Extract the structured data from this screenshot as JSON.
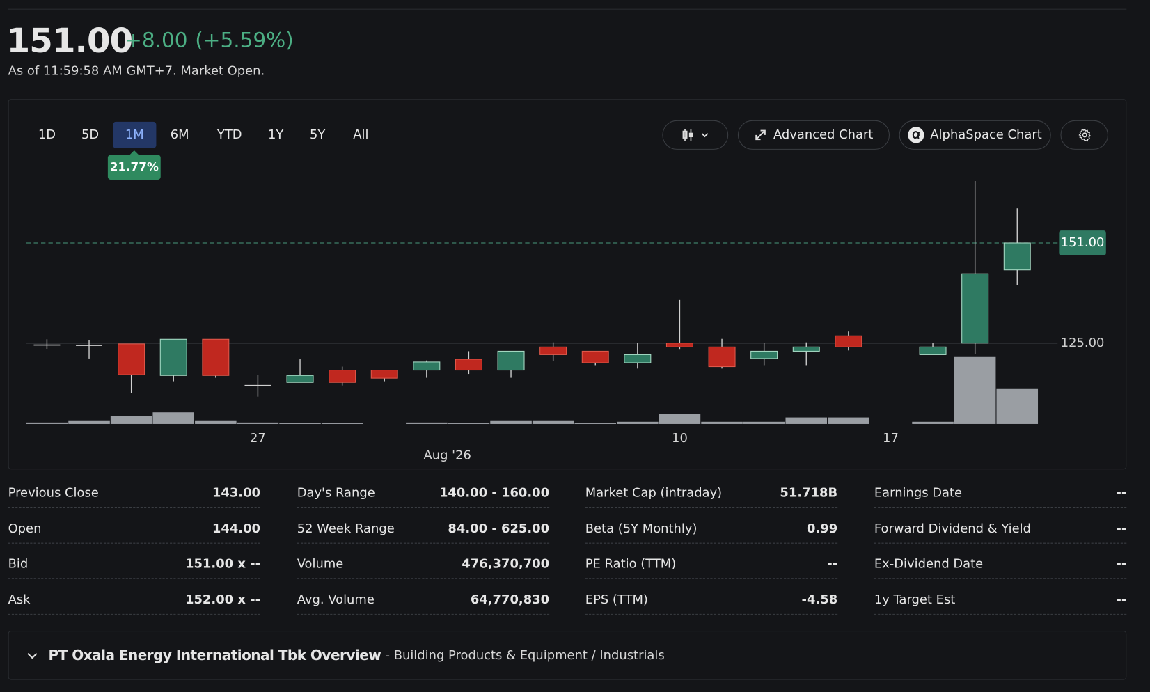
{
  "header": {
    "price": "151.00",
    "change": "+8.00",
    "change_percent": "(+5.59%)",
    "as_of": "As of 11:59:58 AM GMT+7. Market Open."
  },
  "toolbar": {
    "ranges": [
      "1D",
      "5D",
      "1M",
      "6M",
      "YTD",
      "1Y",
      "5Y",
      "All"
    ],
    "selected": "1M",
    "range_change": "21.77%",
    "buttons": [
      "Advanced Chart",
      "AlphaSpace Chart"
    ]
  },
  "chart_data": {
    "type": "candlestick",
    "categories": [
      null,
      null,
      null,
      null,
      null,
      "27",
      null,
      null,
      null,
      null,
      null,
      null,
      null,
      null,
      null,
      "10",
      null,
      null,
      null,
      null,
      "17",
      null,
      null,
      null
    ],
    "x_month_label": "Aug '26",
    "open": [
      124.5,
      124.4,
      124.8,
      116.6,
      126,
      114,
      114.8,
      118,
      118,
      118,
      120.8,
      118,
      124,
      122.9,
      119.9,
      125,
      124,
      121,
      122.9,
      126.9,
      null,
      122,
      125,
      144
    ],
    "high": [
      126,
      125.8,
      124.8,
      126,
      126,
      116.8,
      120.8,
      118.9,
      118,
      120.5,
      122.9,
      122.9,
      125.2,
      122.9,
      125,
      136.2,
      126.1,
      125,
      125.2,
      128,
      null,
      125,
      167.1,
      160
    ],
    "low": [
      123.5,
      121,
      112.1,
      115.1,
      116,
      111.1,
      114.8,
      114,
      115.1,
      116,
      117,
      116,
      120.3,
      119.1,
      118.4,
      123.3,
      118.4,
      119.1,
      119.1,
      123.1,
      null,
      122,
      122.2,
      140
    ],
    "close": [
      124.5,
      124.4,
      116.8,
      126,
      116.6,
      114,
      116.6,
      114.8,
      115.9,
      120.1,
      118,
      122.9,
      122,
      119.9,
      122,
      124,
      118.9,
      122.9,
      124,
      124,
      null,
      124,
      143,
      151
    ],
    "volume": [
      20,
      40,
      109,
      159,
      40,
      20,
      10,
      10,
      null,
      20,
      10,
      40,
      40,
      10,
      30,
      139,
      30,
      30,
      89,
      89,
      null,
      30,
      913,
      476.37
    ],
    "ylim": [
      104,
      168
    ],
    "yticks": [
      {
        "value": 125,
        "label": "125.00"
      }
    ],
    "last_price": {
      "value": 151,
      "label": "151.00"
    },
    "volume_lim": [
      0,
      1000
    ],
    "up_color": "#2f7a62",
    "down_color": "#c0281f",
    "volume_color": "#9a9ea3"
  },
  "stats": [
    [
      [
        "Previous Close",
        "143.00"
      ],
      [
        "Open",
        "144.00"
      ],
      [
        "Bid",
        "151.00 x --"
      ],
      [
        "Ask",
        "152.00 x --"
      ]
    ],
    [
      [
        "Day's Range",
        "140.00 - 160.00"
      ],
      [
        "52 Week Range",
        "84.00 - 625.00"
      ],
      [
        "Volume",
        "476,370,700"
      ],
      [
        "Avg. Volume",
        "64,770,830"
      ]
    ],
    [
      [
        "Market Cap (intraday)",
        "51.718B"
      ],
      [
        "Beta (5Y Monthly)",
        "0.99"
      ],
      [
        "PE Ratio (TTM)",
        "--"
      ],
      [
        "EPS (TTM)",
        "-4.58"
      ]
    ],
    [
      [
        "Earnings Date",
        "--"
      ],
      [
        "Forward Dividend & Yield",
        "--"
      ],
      [
        "Ex-Dividend Date",
        "--"
      ],
      [
        "1y Target Est",
        "--"
      ]
    ]
  ],
  "overview": {
    "title": "PT Oxala Energy International Tbk Overview",
    "subtitle": "- Building Products & Equipment / Industrials"
  }
}
